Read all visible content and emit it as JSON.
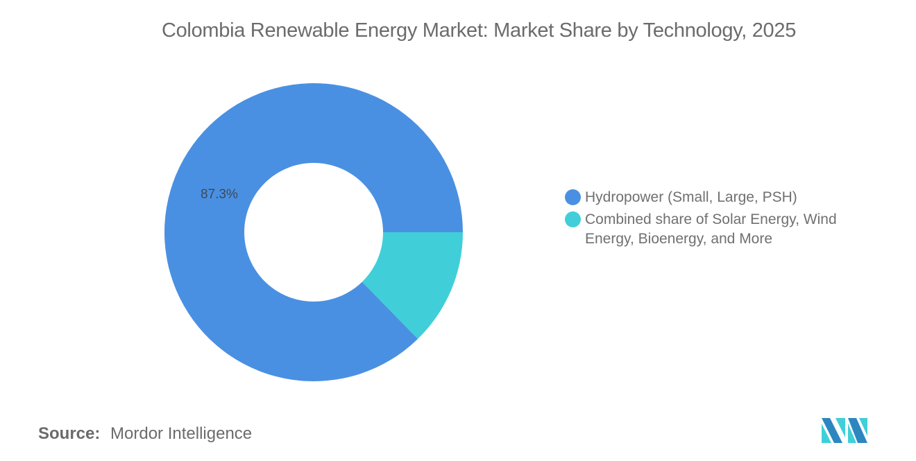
{
  "title": "Colombia Renewable Energy Market: Market Share by Technology, 2025",
  "chart_data": {
    "type": "pie",
    "variant": "donut",
    "title": "Colombia Renewable Energy Market: Market Share by Technology, 2025",
    "categories": [
      "Hydropower (Small, Large, PSH)",
      "Combined share of Solar Energy, Wind Energy, Bioenergy, and More"
    ],
    "values": [
      87.3,
      12.7
    ],
    "unit": "%",
    "colors": [
      "#4A90E2",
      "#40CFD8"
    ],
    "data_labels": [
      "87.3%",
      ""
    ],
    "legend_position": "right",
    "start_angle_deg": 0,
    "direction": "clockwise"
  },
  "slice_label": "87.3%",
  "legend": {
    "items": [
      {
        "label": "Hydropower (Small, Large, PSH)",
        "color": "#4A90E2"
      },
      {
        "label": "Combined share of Solar Energy, Wind Energy, Bioenergy, and More",
        "color": "#40CFD8"
      }
    ]
  },
  "source": {
    "key": "Source:",
    "value": "Mordor Intelligence"
  },
  "logo": {
    "name": "Mordor Intelligence logo",
    "colors": [
      "#2E86C1",
      "#40CFD8"
    ]
  }
}
